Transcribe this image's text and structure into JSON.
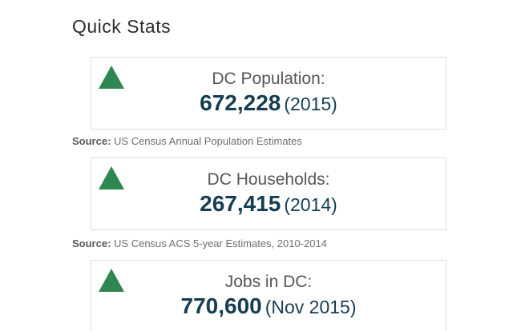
{
  "page": {
    "title": "Quick Stats"
  },
  "colors": {
    "trend_up_green": "#2e8750",
    "value_navy": "#153d51",
    "label_gray": "#54565a",
    "source_gray": "#6d6e71",
    "card_border": "#dcdcdc"
  },
  "stats": [
    {
      "label": "DC Population:",
      "value": "672,228",
      "period": "(2015)",
      "trend": "up",
      "source_prefix": "Source:",
      "source": "US Census Annual Population Estimates"
    },
    {
      "label": "DC Households:",
      "value": "267,415",
      "period": "(2014)",
      "trend": "up",
      "source_prefix": "Source:",
      "source": "US Census ACS 5-year Estimates, 2010-2014"
    },
    {
      "label": "Jobs in DC:",
      "value": "770,600",
      "period": "(Nov 2015)",
      "trend": "up"
    }
  ]
}
